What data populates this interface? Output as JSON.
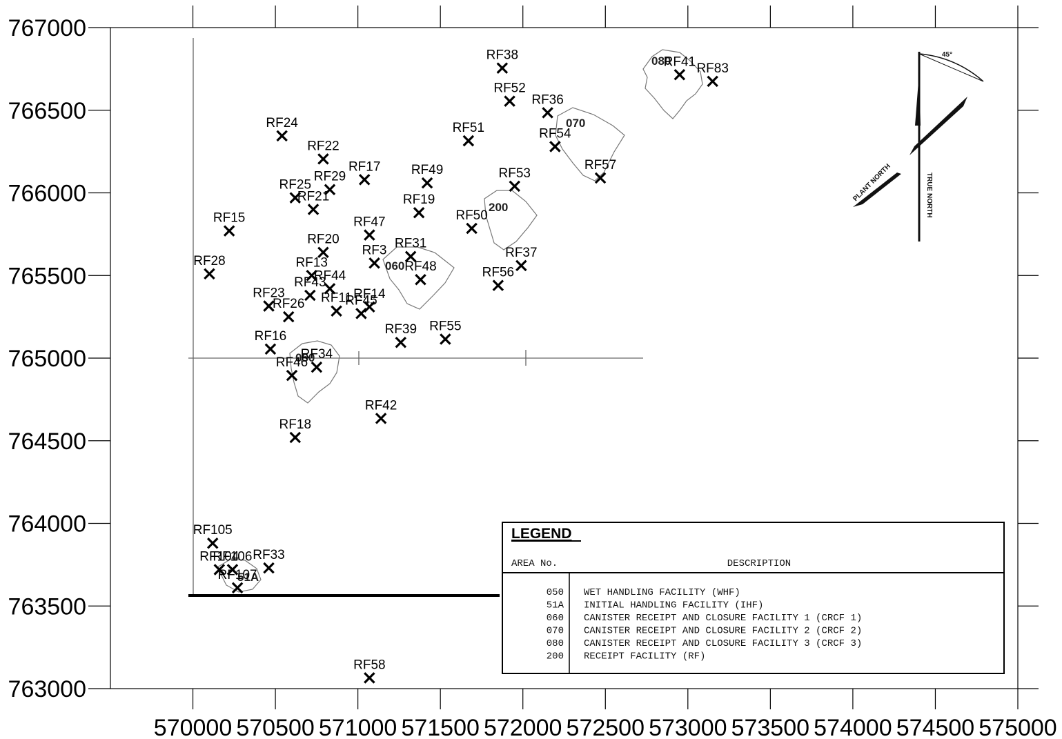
{
  "chart_data": {
    "type": "scatter",
    "xlim": [
      569500,
      575000
    ],
    "ylim": [
      763000,
      767000
    ],
    "xticks": [
      570000,
      570500,
      571000,
      571500,
      572000,
      572500,
      573000,
      573500,
      574000,
      574500,
      575000
    ],
    "yticks": [
      763000,
      763500,
      764000,
      764500,
      765000,
      765500,
      766000,
      766500,
      767000
    ],
    "marker": "x",
    "marker_color": "#000000",
    "grid": false,
    "points": [
      {
        "label": "RF38",
        "x": 571875,
        "y": 766755
      },
      {
        "label": "RF41",
        "x": 572950,
        "y": 766715
      },
      {
        "label": "RF83",
        "x": 573150,
        "y": 766675
      },
      {
        "label": "RF52",
        "x": 571920,
        "y": 766555
      },
      {
        "label": "RF36",
        "x": 572150,
        "y": 766485
      },
      {
        "label": "RF24",
        "x": 570540,
        "y": 766345
      },
      {
        "label": "RF51",
        "x": 571670,
        "y": 766315
      },
      {
        "label": "RF54",
        "x": 572195,
        "y": 766280
      },
      {
        "label": "RF22",
        "x": 570790,
        "y": 766205
      },
      {
        "label": "RF57",
        "x": 572470,
        "y": 766090
      },
      {
        "label": "RF17",
        "x": 571040,
        "y": 766080
      },
      {
        "label": "RF49",
        "x": 571420,
        "y": 766060
      },
      {
        "label": "RF53",
        "x": 571950,
        "y": 766040
      },
      {
        "label": "RF29",
        "x": 570830,
        "y": 766020
      },
      {
        "label": "RF25",
        "x": 570620,
        "y": 765970
      },
      {
        "label": "RF21",
        "x": 570730,
        "y": 765900
      },
      {
        "label": "RF19",
        "x": 571370,
        "y": 765880
      },
      {
        "label": "RF50",
        "x": 571690,
        "y": 765785
      },
      {
        "label": "RF15",
        "x": 570220,
        "y": 765770
      },
      {
        "label": "RF47",
        "x": 571070,
        "y": 765745
      },
      {
        "label": "RF20",
        "x": 570790,
        "y": 765640
      },
      {
        "label": "RF31",
        "x": 571320,
        "y": 765615
      },
      {
        "label": "RF3",
        "x": 571100,
        "y": 765575
      },
      {
        "label": "RF37",
        "x": 571990,
        "y": 765560
      },
      {
        "label": "RF28",
        "x": 570100,
        "y": 765510
      },
      {
        "label": "RF13",
        "x": 570720,
        "y": 765500
      },
      {
        "label": "RF48",
        "x": 571380,
        "y": 765475
      },
      {
        "label": "RF56",
        "x": 571850,
        "y": 765440
      },
      {
        "label": "RF44",
        "x": 570830,
        "y": 765420
      },
      {
        "label": "RF43",
        "x": 570710,
        "y": 765380
      },
      {
        "label": "RF23",
        "x": 570460,
        "y": 765315
      },
      {
        "label": "RF14",
        "x": 571070,
        "y": 765310
      },
      {
        "label": "RF11",
        "x": 570870,
        "y": 765285
      },
      {
        "label": "RF45",
        "x": 571020,
        "y": 765270
      },
      {
        "label": "RF26",
        "x": 570580,
        "y": 765250
      },
      {
        "label": "RF55",
        "x": 571530,
        "y": 765115
      },
      {
        "label": "RF39",
        "x": 571260,
        "y": 765095
      },
      {
        "label": "RF16",
        "x": 570470,
        "y": 765055
      },
      {
        "label": "RF34",
        "x": 570750,
        "y": 764945
      },
      {
        "label": "RF46",
        "x": 570600,
        "y": 764895
      },
      {
        "label": "RF42",
        "x": 571140,
        "y": 764635
      },
      {
        "label": "RF18",
        "x": 570620,
        "y": 764520
      },
      {
        "label": "RF105",
        "x": 570120,
        "y": 763880
      },
      {
        "label": "RF33",
        "x": 570460,
        "y": 763730
      },
      {
        "label": "RF104",
        "x": 570160,
        "y": 763720
      },
      {
        "label": "RF106",
        "x": 570240,
        "y": 763720
      },
      {
        "label": "RF107",
        "x": 570270,
        "y": 763610
      },
      {
        "label": "RF58",
        "x": 571070,
        "y": 763065
      }
    ],
    "building_labels": [
      "080",
      "070",
      "200",
      "060",
      "050",
      "51A"
    ],
    "legend": {
      "title": "LEGEND",
      "col_area": "AREA No.",
      "col_desc": "DESCRIPTION",
      "rows": [
        {
          "area": "050",
          "description": "WET HANDLING FACILITY (WHF)"
        },
        {
          "area": "51A",
          "description": "INITIAL HANDLING FACILITY (IHF)"
        },
        {
          "area": "060",
          "description": "CANISTER RECEIPT AND CLOSURE FACILITY 1 (CRCF 1)"
        },
        {
          "area": "070",
          "description": "CANISTER RECEIPT AND CLOSURE FACILITY 2 (CRCF 2)"
        },
        {
          "area": "080",
          "description": "CANISTER RECEIPT AND CLOSURE FACILITY 3 (CRCF 3)"
        },
        {
          "area": "200",
          "description": "RECEIPT FACILITY (RF)"
        }
      ]
    },
    "north_arrow": {
      "plant": "PLANT NORTH",
      "true": "TRUE NORTH",
      "angle": "45°"
    }
  }
}
